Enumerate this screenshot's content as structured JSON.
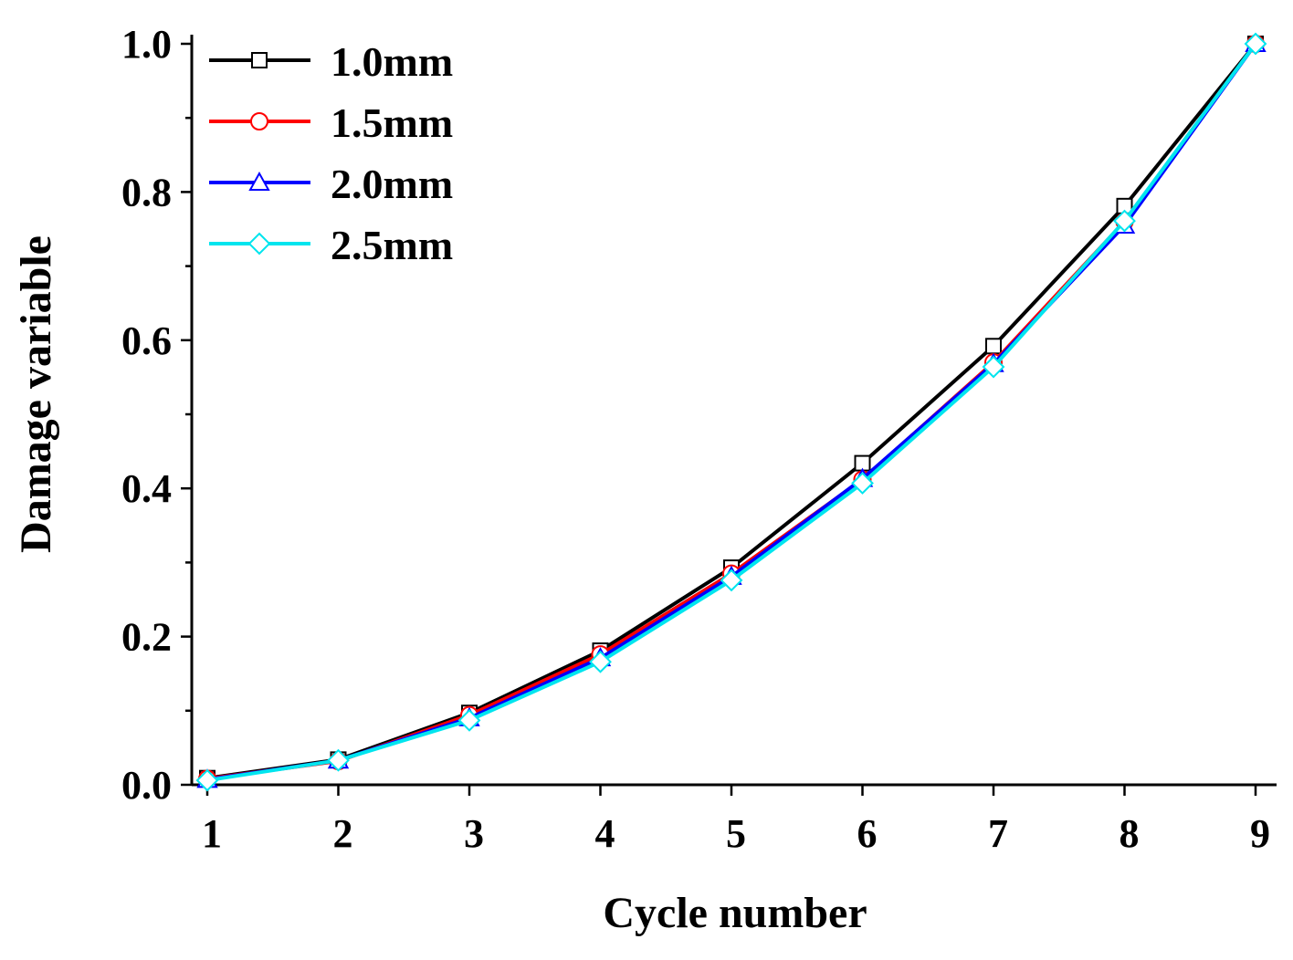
{
  "chart_data": {
    "type": "line",
    "xlabel": "Cycle number",
    "ylabel": "Damage variable",
    "x": [
      1,
      2,
      3,
      4,
      5,
      6,
      7,
      8,
      9
    ],
    "xlim": [
      0.95,
      9.05
    ],
    "ylim": [
      0,
      1.0
    ],
    "xticks": [
      "1",
      "2",
      "3",
      "4",
      "5",
      "6",
      "7",
      "8",
      "9"
    ],
    "yticks": [
      "0.0",
      "0.2",
      "0.4",
      "0.6",
      "0.8",
      "1.0"
    ],
    "grid": false,
    "legend_position": "top-left",
    "series": [
      {
        "name": "1.0mm",
        "color": "#000000",
        "marker": "square",
        "values": [
          0.009,
          0.034,
          0.097,
          0.181,
          0.293,
          0.434,
          0.592,
          0.781,
          1.0
        ]
      },
      {
        "name": "1.5mm",
        "color": "#ff0000",
        "marker": "circle",
        "values": [
          0.008,
          0.032,
          0.094,
          0.176,
          0.285,
          0.412,
          0.57,
          0.76,
          1.0
        ]
      },
      {
        "name": "2.0mm",
        "color": "#0000ff",
        "marker": "triangle",
        "values": [
          0.007,
          0.033,
          0.09,
          0.171,
          0.281,
          0.413,
          0.568,
          0.755,
          1.0
        ]
      },
      {
        "name": "2.5mm",
        "color": "#00e5ee",
        "marker": "diamond",
        "values": [
          0.006,
          0.033,
          0.087,
          0.166,
          0.276,
          0.407,
          0.564,
          0.761,
          1.0
        ]
      }
    ]
  }
}
